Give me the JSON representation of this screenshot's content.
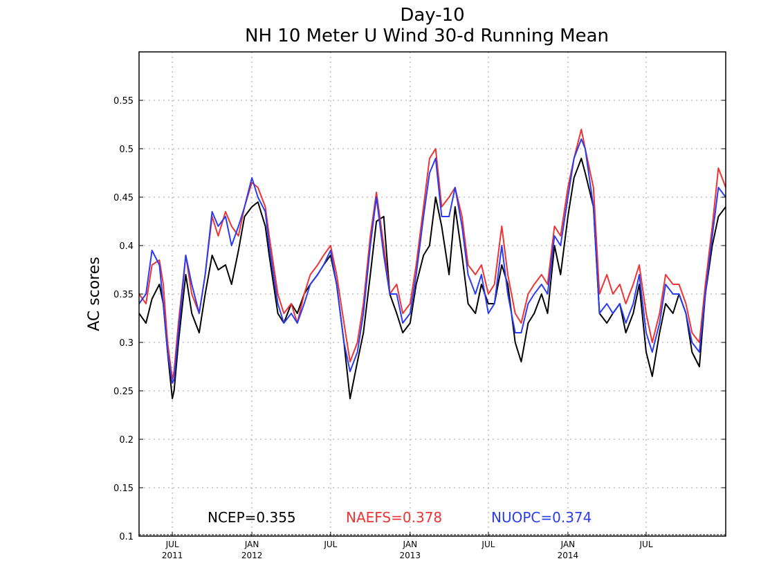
{
  "chart_data": {
    "type": "line",
    "title": [
      "Day-10",
      "NH 10 Meter U Wind 30-d Running Mean"
    ],
    "xlabel": "",
    "ylabel": "AC scores",
    "xlim": [
      "2011-04-15",
      "2015-01-01"
    ],
    "ylim": [
      0.1,
      0.6
    ],
    "yticks": [
      0.1,
      0.15,
      0.2,
      0.25,
      0.3,
      0.35,
      0.4,
      0.45,
      0.5,
      0.55
    ],
    "ytick_labels": [
      "0.1",
      "0.15",
      "0.2",
      "0.25",
      "0.3",
      "0.35",
      "0.4",
      "0.45",
      "0.5",
      "0.55"
    ],
    "xticks": [
      {
        "date": "2011-07-01",
        "month": "JUL",
        "year": "2011"
      },
      {
        "date": "2012-01-01",
        "month": "JAN",
        "year": "2012"
      },
      {
        "date": "2012-07-01",
        "month": "JUL",
        "year": ""
      },
      {
        "date": "2013-01-01",
        "month": "JAN",
        "year": "2013"
      },
      {
        "date": "2013-07-01",
        "month": "JUL",
        "year": ""
      },
      {
        "date": "2014-01-01",
        "month": "JAN",
        "year": "2014"
      },
      {
        "date": "2014-07-01",
        "month": "JUL",
        "year": ""
      }
    ],
    "grid": true,
    "legend_position": "bottom",
    "x": [
      "2011-04-15",
      "2011-05-01",
      "2011-05-15",
      "2011-06-01",
      "2011-06-10",
      "2011-06-20",
      "2011-07-01",
      "2011-07-05",
      "2011-07-15",
      "2011-08-01",
      "2011-08-15",
      "2011-09-01",
      "2011-09-15",
      "2011-10-01",
      "2011-10-15",
      "2011-11-01",
      "2011-11-15",
      "2011-12-01",
      "2011-12-15",
      "2012-01-01",
      "2012-01-15",
      "2012-02-01",
      "2012-02-10",
      "2012-03-01",
      "2012-03-15",
      "2012-04-01",
      "2012-04-15",
      "2012-05-01",
      "2012-05-15",
      "2012-06-01",
      "2012-06-15",
      "2012-07-01",
      "2012-07-15",
      "2012-08-01",
      "2012-08-15",
      "2012-09-01",
      "2012-09-15",
      "2012-10-01",
      "2012-10-15",
      "2012-11-01",
      "2012-11-15",
      "2012-12-01",
      "2012-12-15",
      "2013-01-01",
      "2013-01-15",
      "2013-02-01",
      "2013-02-15",
      "2013-03-01",
      "2013-03-15",
      "2013-04-01",
      "2013-04-15",
      "2013-05-01",
      "2013-05-15",
      "2013-06-01",
      "2013-06-15",
      "2013-07-01",
      "2013-07-15",
      "2013-08-01",
      "2013-08-15",
      "2013-09-01",
      "2013-09-15",
      "2013-10-01",
      "2013-10-15",
      "2013-11-01",
      "2013-11-15",
      "2013-12-01",
      "2013-12-15",
      "2014-01-01",
      "2014-01-15",
      "2014-02-01",
      "2014-02-10",
      "2014-03-01",
      "2014-03-15",
      "2014-04-01",
      "2014-04-15",
      "2014-05-01",
      "2014-05-15",
      "2014-06-01",
      "2014-06-15",
      "2014-07-01",
      "2014-07-15",
      "2014-08-01",
      "2014-08-15",
      "2014-09-01",
      "2014-09-15",
      "2014-10-01",
      "2014-10-15",
      "2014-11-01",
      "2014-11-15",
      "2014-12-01",
      "2014-12-15",
      "2015-01-01"
    ],
    "series": [
      {
        "name": "NCEP",
        "color": "#000000",
        "stroke_width": 2.0,
        "values": [
          0.33,
          0.32,
          0.345,
          0.36,
          0.34,
          0.29,
          0.242,
          0.25,
          0.3,
          0.37,
          0.33,
          0.31,
          0.35,
          0.39,
          0.375,
          0.38,
          0.36,
          0.395,
          0.43,
          0.44,
          0.445,
          0.42,
          0.39,
          0.33,
          0.32,
          0.34,
          0.33,
          0.35,
          0.36,
          0.37,
          0.38,
          0.39,
          0.36,
          0.3,
          0.242,
          0.28,
          0.31,
          0.37,
          0.425,
          0.43,
          0.35,
          0.33,
          0.31,
          0.32,
          0.36,
          0.39,
          0.4,
          0.45,
          0.42,
          0.37,
          0.44,
          0.39,
          0.34,
          0.33,
          0.36,
          0.34,
          0.34,
          0.38,
          0.36,
          0.3,
          0.28,
          0.32,
          0.33,
          0.35,
          0.33,
          0.4,
          0.37,
          0.43,
          0.47,
          0.49,
          0.475,
          0.44,
          0.33,
          0.32,
          0.33,
          0.34,
          0.31,
          0.33,
          0.36,
          0.29,
          0.265,
          0.31,
          0.34,
          0.33,
          0.35,
          0.33,
          0.29,
          0.275,
          0.35,
          0.4,
          0.43,
          0.44
        ]
      },
      {
        "name": "NAEFS",
        "color": "#ee3333",
        "stroke_width": 2.0,
        "values": [
          0.35,
          0.34,
          0.38,
          0.385,
          0.36,
          0.3,
          0.262,
          0.27,
          0.32,
          0.39,
          0.35,
          0.33,
          0.37,
          0.43,
          0.41,
          0.435,
          0.42,
          0.41,
          0.44,
          0.465,
          0.46,
          0.44,
          0.41,
          0.35,
          0.33,
          0.34,
          0.32,
          0.35,
          0.37,
          0.38,
          0.39,
          0.4,
          0.37,
          0.32,
          0.28,
          0.3,
          0.34,
          0.41,
          0.455,
          0.4,
          0.35,
          0.36,
          0.33,
          0.34,
          0.38,
          0.44,
          0.49,
          0.5,
          0.44,
          0.45,
          0.46,
          0.43,
          0.38,
          0.37,
          0.38,
          0.35,
          0.36,
          0.42,
          0.37,
          0.33,
          0.32,
          0.35,
          0.36,
          0.37,
          0.36,
          0.42,
          0.41,
          0.46,
          0.49,
          0.52,
          0.5,
          0.46,
          0.35,
          0.37,
          0.35,
          0.36,
          0.34,
          0.36,
          0.38,
          0.33,
          0.3,
          0.33,
          0.37,
          0.36,
          0.36,
          0.34,
          0.31,
          0.3,
          0.36,
          0.42,
          0.48,
          0.46
        ]
      },
      {
        "name": "NUOPC",
        "color": "#2a3cf0",
        "stroke_width": 2.0,
        "values": [
          0.34,
          0.35,
          0.395,
          0.38,
          0.34,
          0.29,
          0.258,
          0.262,
          0.31,
          0.39,
          0.36,
          0.33,
          0.37,
          0.435,
          0.42,
          0.43,
          0.4,
          0.42,
          0.44,
          0.47,
          0.45,
          0.435,
          0.4,
          0.34,
          0.32,
          0.33,
          0.32,
          0.34,
          0.36,
          0.37,
          0.38,
          0.395,
          0.36,
          0.3,
          0.27,
          0.29,
          0.33,
          0.4,
          0.45,
          0.39,
          0.35,
          0.35,
          0.32,
          0.33,
          0.37,
          0.43,
          0.475,
          0.49,
          0.43,
          0.43,
          0.46,
          0.42,
          0.37,
          0.35,
          0.37,
          0.33,
          0.34,
          0.4,
          0.35,
          0.31,
          0.31,
          0.34,
          0.35,
          0.36,
          0.35,
          0.41,
          0.4,
          0.45,
          0.49,
          0.51,
          0.5,
          0.44,
          0.33,
          0.34,
          0.33,
          0.34,
          0.32,
          0.34,
          0.37,
          0.31,
          0.29,
          0.32,
          0.36,
          0.35,
          0.35,
          0.33,
          0.3,
          0.29,
          0.35,
          0.41,
          0.46,
          0.45
        ]
      }
    ],
    "annotations": [
      {
        "text": "NCEP=0.355",
        "color": "#000000"
      },
      {
        "text": "NAEFS=0.378",
        "color": "#ee3333"
      },
      {
        "text": "NUOPC=0.374",
        "color": "#2a3cf0"
      }
    ]
  }
}
